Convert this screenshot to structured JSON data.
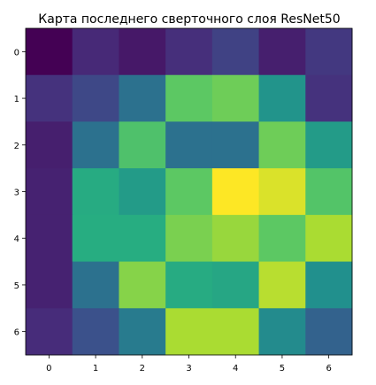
{
  "chart_data": {
    "type": "heatmap",
    "title": "Карта последнего сверточного слоя ResNet50",
    "xlabel": "",
    "ylabel": "",
    "x_ticks": [
      "0",
      "1",
      "2",
      "3",
      "4",
      "5",
      "6"
    ],
    "y_ticks": [
      "0",
      "1",
      "2",
      "3",
      "4",
      "5",
      "6"
    ],
    "colormap": "viridis",
    "grid": false,
    "legend": "none",
    "value_range": [
      0,
      1
    ],
    "values": [
      [
        0.0,
        0.12,
        0.07,
        0.14,
        0.2,
        0.09,
        0.17
      ],
      [
        0.15,
        0.22,
        0.38,
        0.75,
        0.78,
        0.52,
        0.15
      ],
      [
        0.09,
        0.38,
        0.72,
        0.38,
        0.38,
        0.78,
        0.55
      ],
      [
        0.1,
        0.62,
        0.55,
        0.75,
        1.0,
        0.95,
        0.73
      ],
      [
        0.1,
        0.63,
        0.63,
        0.8,
        0.85,
        0.75,
        0.88
      ],
      [
        0.1,
        0.38,
        0.82,
        0.62,
        0.6,
        0.9,
        0.5
      ],
      [
        0.13,
        0.25,
        0.42,
        0.88,
        0.88,
        0.48,
        0.32
      ]
    ]
  }
}
